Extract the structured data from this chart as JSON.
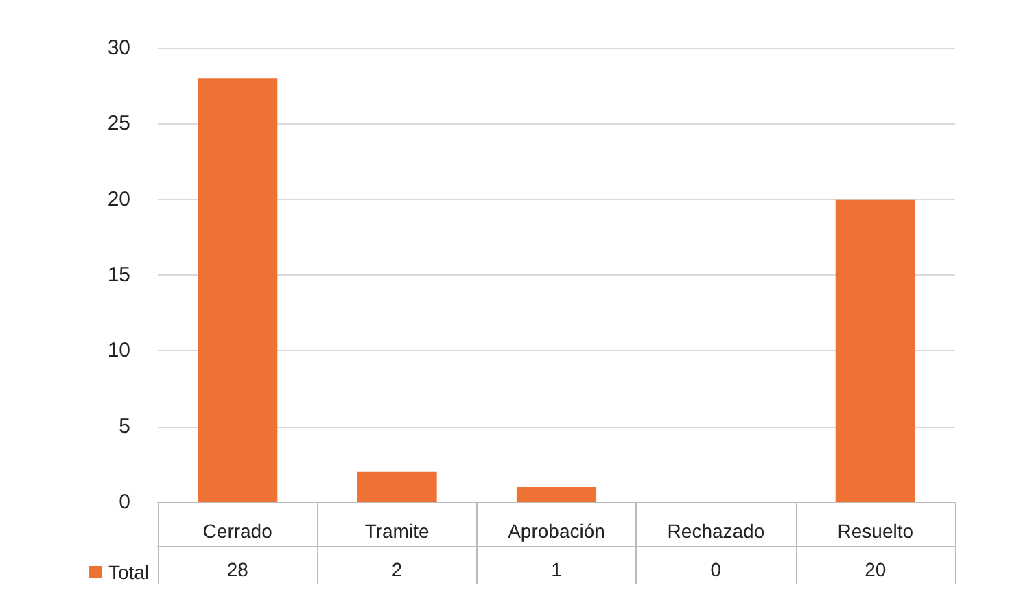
{
  "chart_data": {
    "type": "bar",
    "categories": [
      "Cerrado",
      "Tramite",
      "Aprobación",
      "Rechazado",
      "Resuelto"
    ],
    "series": [
      {
        "name": "Total",
        "color": "#ed7233",
        "values": [
          28,
          2,
          1,
          0,
          20
        ]
      }
    ],
    "ylim": [
      0,
      30
    ],
    "yticks": [
      0,
      5,
      10,
      15,
      20,
      25,
      30
    ],
    "grid": "y",
    "legend": "bottom left",
    "data_labels": true
  }
}
